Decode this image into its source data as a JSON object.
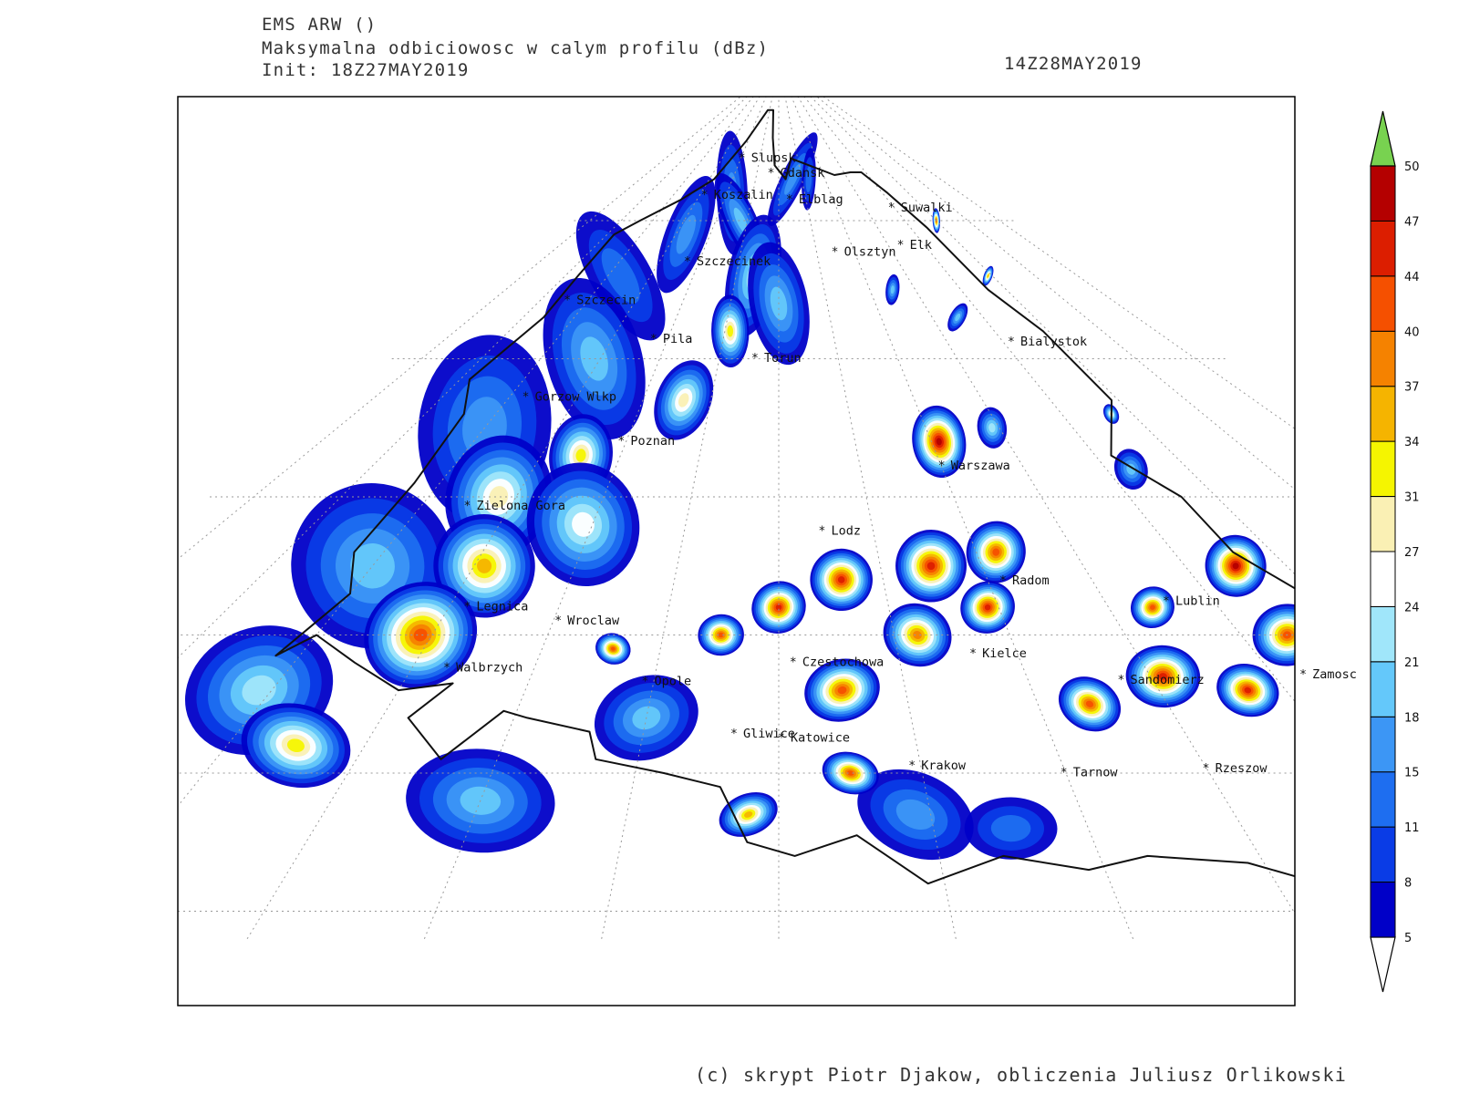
{
  "header": {
    "model": "EMS ARW ()",
    "variable": "Maksymalna odbiciowosc w calym profilu (dBz)",
    "init": "Init: 18Z27MAY2019",
    "valid_time": "14Z28MAY2019"
  },
  "footer": "(c) skrypt Piotr Djakow, obliczenia Juliusz Orlikowski",
  "cities": [
    {
      "name": "Slupsk",
      "lon": 17.03,
      "lat": 54.46
    },
    {
      "name": "Koszalin",
      "lon": 16.17,
      "lat": 54.19
    },
    {
      "name": "Gdansk",
      "lon": 18.65,
      "lat": 54.35
    },
    {
      "name": "Elblag",
      "lon": 19.4,
      "lat": 54.16
    },
    {
      "name": "Suwalki",
      "lon": 22.93,
      "lat": 54.1
    },
    {
      "name": "Elk",
      "lon": 22.36,
      "lat": 53.83
    },
    {
      "name": "Szczecinek",
      "lon": 16.7,
      "lat": 53.71
    },
    {
      "name": "Olsztyn",
      "lon": 20.49,
      "lat": 53.78
    },
    {
      "name": "Szczecin",
      "lon": 14.55,
      "lat": 53.43
    },
    {
      "name": "Pila",
      "lon": 16.74,
      "lat": 53.15
    },
    {
      "name": "Bialystok",
      "lon": 23.16,
      "lat": 53.13
    },
    {
      "name": "Torun",
      "lon": 18.6,
      "lat": 53.01
    },
    {
      "name": "Gorzow Wlkp",
      "lon": 15.23,
      "lat": 52.73
    },
    {
      "name": "Poznan",
      "lon": 16.93,
      "lat": 52.41
    },
    {
      "name": "Warszawa",
      "lon": 21.01,
      "lat": 52.23
    },
    {
      "name": "Zielona Gora",
      "lon": 15.51,
      "lat": 51.94
    },
    {
      "name": "Lodz",
      "lon": 19.46,
      "lat": 51.76
    },
    {
      "name": "Radom",
      "lon": 21.15,
      "lat": 51.4
    },
    {
      "name": "Lublin",
      "lon": 22.57,
      "lat": 51.25
    },
    {
      "name": "Legnica",
      "lon": 16.16,
      "lat": 51.21
    },
    {
      "name": "Wroclaw",
      "lon": 17.04,
      "lat": 51.11
    },
    {
      "name": "Walbrzych",
      "lon": 16.28,
      "lat": 50.77
    },
    {
      "name": "Czestochowa",
      "lon": 19.12,
      "lat": 50.81
    },
    {
      "name": "Kielce",
      "lon": 20.63,
      "lat": 50.87
    },
    {
      "name": "Zamosc",
      "lon": 23.25,
      "lat": 50.72
    },
    {
      "name": "Sandomierz",
      "lon": 21.75,
      "lat": 50.68
    },
    {
      "name": "Opole",
      "lon": 17.93,
      "lat": 50.67
    },
    {
      "name": "Gliwice",
      "lon": 18.67,
      "lat": 50.29
    },
    {
      "name": "Katowice",
      "lon": 19.02,
      "lat": 50.26
    },
    {
      "name": "Krakow",
      "lon": 19.94,
      "lat": 50.06
    },
    {
      "name": "Tarnow",
      "lon": 20.99,
      "lat": 50.01
    },
    {
      "name": "Rzeszow",
      "lon": 22.0,
      "lat": 50.04
    }
  ],
  "legend": {
    "unit": "dBz",
    "thresholds": [
      "5",
      "8",
      "11",
      "15",
      "18",
      "21",
      "24",
      "27",
      "31",
      "34",
      "37",
      "40",
      "44",
      "47",
      "50"
    ],
    "colors": [
      "#ffffff",
      "#0000c8",
      "#0a3ce6",
      "#1e6ef0",
      "#3c96f5",
      "#64c8fa",
      "#a0e6fa",
      "#ffffff",
      "#faf0b4",
      "#f5f500",
      "#f5b400",
      "#f58200",
      "#f55000",
      "#dc1e00",
      "#b40000",
      "#78d250"
    ]
  },
  "reflectivity_cells": [
    {
      "lon": 15.3,
      "lat": 53.6,
      "dbz": 14,
      "r": 0.7
    },
    {
      "lon": 15.0,
      "lat": 52.5,
      "dbz": 16,
      "r": 0.9
    },
    {
      "lon": 15.9,
      "lat": 53.0,
      "dbz": 18,
      "r": 0.8
    },
    {
      "lon": 16.3,
      "lat": 53.9,
      "dbz": 15,
      "r": 0.6
    },
    {
      "lon": 17.2,
      "lat": 54.2,
      "dbz": 17,
      "r": 0.6
    },
    {
      "lon": 17.8,
      "lat": 54.0,
      "dbz": 20,
      "r": 0.5
    },
    {
      "lon": 18.4,
      "lat": 53.6,
      "dbz": 22,
      "r": 0.6
    },
    {
      "lon": 19.0,
      "lat": 53.4,
      "dbz": 19,
      "r": 0.6
    },
    {
      "lon": 19.6,
      "lat": 54.3,
      "dbz": 15,
      "r": 0.5
    },
    {
      "lon": 20.3,
      "lat": 54.3,
      "dbz": 14,
      "r": 0.3
    },
    {
      "lon": 15.0,
      "lat": 51.5,
      "dbz": 18,
      "r": 0.8
    },
    {
      "lon": 15.8,
      "lat": 52.0,
      "dbz": 28,
      "r": 0.6
    },
    {
      "lon": 16.1,
      "lat": 51.5,
      "dbz": 36,
      "r": 0.5
    },
    {
      "lon": 15.9,
      "lat": 51.0,
      "dbz": 40,
      "r": 0.5
    },
    {
      "lon": 16.5,
      "lat": 52.3,
      "dbz": 33,
      "r": 0.4
    },
    {
      "lon": 16.9,
      "lat": 51.8,
      "dbz": 26,
      "r": 0.6
    },
    {
      "lon": 17.6,
      "lat": 52.7,
      "dbz": 30,
      "r": 0.4
    },
    {
      "lon": 18.1,
      "lat": 53.2,
      "dbz": 32,
      "r": 0.35
    },
    {
      "lon": 14.9,
      "lat": 50.6,
      "dbz": 22,
      "r": 0.6
    },
    {
      "lon": 15.5,
      "lat": 50.2,
      "dbz": 31,
      "r": 0.4
    },
    {
      "lon": 14.6,
      "lat": 49.6,
      "dbz": 28,
      "r": 0.5
    },
    {
      "lon": 14.0,
      "lat": 49.9,
      "dbz": 20,
      "r": 0.6
    },
    {
      "lon": 17.0,
      "lat": 49.8,
      "dbz": 18,
      "r": 0.5
    },
    {
      "lon": 18.0,
      "lat": 50.4,
      "dbz": 20,
      "r": 0.4
    },
    {
      "lon": 17.6,
      "lat": 50.9,
      "dbz": 40,
      "r": 0.15
    },
    {
      "lon": 18.5,
      "lat": 51.0,
      "dbz": 42,
      "r": 0.2
    },
    {
      "lon": 19.0,
      "lat": 51.2,
      "dbz": 44,
      "r": 0.25
    },
    {
      "lon": 19.6,
      "lat": 51.4,
      "dbz": 45,
      "r": 0.3
    },
    {
      "lon": 19.5,
      "lat": 50.6,
      "dbz": 43,
      "r": 0.3
    },
    {
      "lon": 20.2,
      "lat": 51.0,
      "dbz": 38,
      "r": 0.3
    },
    {
      "lon": 20.5,
      "lat": 51.5,
      "dbz": 46,
      "r": 0.35
    },
    {
      "lon": 20.9,
      "lat": 51.2,
      "dbz": 44,
      "r": 0.25
    },
    {
      "lon": 21.2,
      "lat": 51.6,
      "dbz": 42,
      "r": 0.3
    },
    {
      "lon": 21.1,
      "lat": 52.4,
      "dbz": 47,
      "r": 0.35
    },
    {
      "lon": 21.4,
      "lat": 50.5,
      "dbz": 41,
      "r": 0.25
    },
    {
      "lon": 22.1,
      "lat": 50.7,
      "dbz": 44,
      "r": 0.3
    },
    {
      "lon": 22.4,
      "lat": 51.2,
      "dbz": 42,
      "r": 0.2
    },
    {
      "lon": 22.7,
      "lat": 50.6,
      "dbz": 45,
      "r": 0.25
    },
    {
      "lon": 23.4,
      "lat": 51.0,
      "dbz": 42,
      "r": 0.3
    },
    {
      "lon": 23.5,
      "lat": 51.5,
      "dbz": 48,
      "r": 0.3
    },
    {
      "lon": 24.0,
      "lat": 50.5,
      "dbz": 36,
      "r": 0.3
    },
    {
      "lon": 24.3,
      "lat": 49.7,
      "dbz": 47,
      "r": 0.35
    },
    {
      "lon": 19.9,
      "lat": 49.7,
      "dbz": 16,
      "r": 0.4
    },
    {
      "lon": 20.5,
      "lat": 49.6,
      "dbz": 12,
      "r": 0.3
    },
    {
      "lon": 18.8,
      "lat": 49.7,
      "dbz": 36,
      "r": 0.2
    },
    {
      "lon": 19.5,
      "lat": 50.0,
      "dbz": 40,
      "r": 0.2
    },
    {
      "lon": 21.9,
      "lat": 52.5,
      "dbz": 22,
      "r": 0.2
    },
    {
      "lon": 22.5,
      "lat": 53.3,
      "dbz": 18,
      "r": 0.15
    },
    {
      "lon": 21.5,
      "lat": 53.5,
      "dbz": 20,
      "r": 0.15
    },
    {
      "lon": 23.3,
      "lat": 52.2,
      "dbz": 20,
      "r": 0.2
    },
    {
      "lon": 23.9,
      "lat": 53.6,
      "dbz": 36,
      "r": 0.1
    },
    {
      "lon": 24.0,
      "lat": 54.0,
      "dbz": 40,
      "r": 0.12
    },
    {
      "lon": 23.7,
      "lat": 52.6,
      "dbz": 30,
      "r": 0.1
    }
  ]
}
